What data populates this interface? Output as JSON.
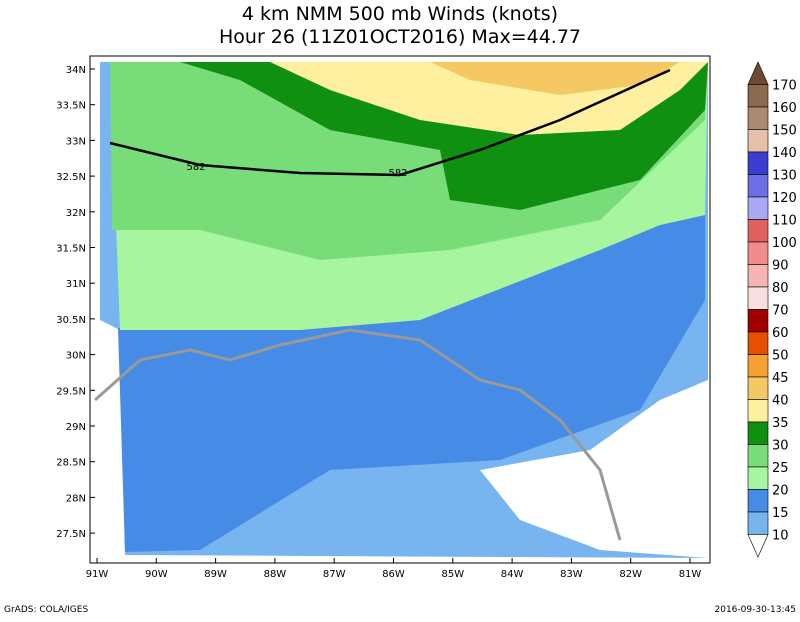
{
  "header": {
    "title_lines": [
      "4 km NMM 500 mb Winds (knots)",
      "Hour 26 (11Z01OCT2016) Max=44.77"
    ]
  },
  "lat_labels": [
    "34N",
    "33.5N",
    "33N",
    "32.5N",
    "32N",
    "31.5N",
    "31N",
    "30.5N",
    "30N",
    "29.5N",
    "29N",
    "28.5N",
    "28N",
    "27.5N"
  ],
  "lon_labels": [
    "91W",
    "90W",
    "89W",
    "88W",
    "87W",
    "86W",
    "85W",
    "84W",
    "83W",
    "82W",
    "81W"
  ],
  "contour_labels": [
    "582",
    "582"
  ],
  "colorbar": {
    "labels": [
      "170",
      "160",
      "150",
      "140",
      "130",
      "120",
      "110",
      "100",
      "90",
      "80",
      "70",
      "60",
      "50",
      "45",
      "40",
      "35",
      "30",
      "25",
      "20",
      "15",
      "10"
    ],
    "colors": [
      "#6e4a32",
      "#8c6a50",
      "#aa8a70",
      "#e6c0a8",
      "#3c3cd0",
      "#6e6ee6",
      "#a8a8f5",
      "#e06060",
      "#f08c8c",
      "#f8b4b4",
      "#f8e0e0",
      "#a00000",
      "#e65000",
      "#f5a030",
      "#f5c864",
      "#fff0a0",
      "#109010",
      "#78dc78",
      "#a8f5a0",
      "#468ce6",
      "#78b4f0",
      "#ffffff"
    ]
  },
  "footer": {
    "left": "GrADS: COLA/IGES",
    "right": "2016-09-30-13:45"
  }
}
